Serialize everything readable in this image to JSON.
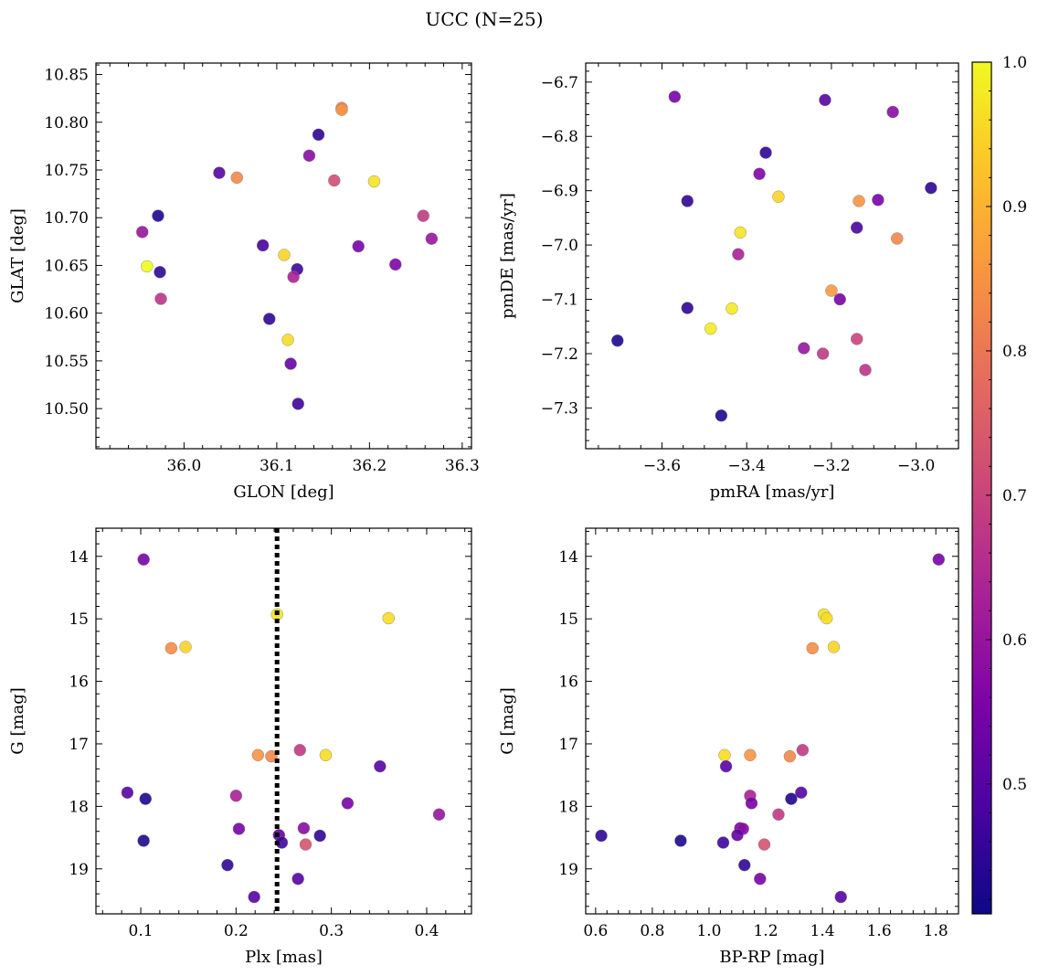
{
  "figure": {
    "title": "UCC (N=25)"
  },
  "colorbar": {
    "min": 0.41,
    "max": 1.0,
    "ticks": [
      0.5,
      0.6,
      0.7,
      0.8,
      0.9,
      1.0
    ],
    "tick_labels": [
      "0.5",
      "0.6",
      "0.7",
      "0.8",
      "0.9",
      "1.0"
    ],
    "colormap": "plasma"
  },
  "chart_data": [
    {
      "type": "scatter",
      "title": "",
      "xlabel": "GLON [deg]",
      "ylabel": "GLAT [deg]",
      "xlim": [
        35.905,
        36.31
      ],
      "ylim": [
        10.458,
        10.862
      ],
      "xticks": [
        36.0,
        36.1,
        36.2,
        36.3
      ],
      "xtick_labels": [
        "36.0",
        "36.1",
        "36.2",
        "36.3"
      ],
      "yticks": [
        10.5,
        10.55,
        10.6,
        10.65,
        10.7,
        10.75,
        10.8,
        10.85
      ],
      "ytick_labels": [
        "10.50",
        "10.55",
        "10.60",
        "10.65",
        "10.70",
        "10.75",
        "10.80",
        "10.85"
      ],
      "y_inverted": false,
      "points": [
        {
          "x": 36.17,
          "y": 10.815,
          "c": 0.82
        },
        {
          "x": 36.17,
          "y": 10.813,
          "c": 0.85
        },
        {
          "x": 36.145,
          "y": 10.787,
          "c": 0.45
        },
        {
          "x": 36.135,
          "y": 10.765,
          "c": 0.58
        },
        {
          "x": 36.038,
          "y": 10.747,
          "c": 0.5
        },
        {
          "x": 36.057,
          "y": 10.742,
          "c": 0.83
        },
        {
          "x": 36.162,
          "y": 10.739,
          "c": 0.72
        },
        {
          "x": 36.205,
          "y": 10.738,
          "c": 0.97
        },
        {
          "x": 35.972,
          "y": 10.702,
          "c": 0.43
        },
        {
          "x": 36.258,
          "y": 10.702,
          "c": 0.68
        },
        {
          "x": 35.955,
          "y": 10.685,
          "c": 0.6
        },
        {
          "x": 36.267,
          "y": 10.678,
          "c": 0.6
        },
        {
          "x": 36.085,
          "y": 10.671,
          "c": 0.48
        },
        {
          "x": 36.188,
          "y": 10.67,
          "c": 0.55
        },
        {
          "x": 36.108,
          "y": 10.661,
          "c": 0.95
        },
        {
          "x": 35.96,
          "y": 10.649,
          "c": 1.0
        },
        {
          "x": 36.228,
          "y": 10.651,
          "c": 0.56
        },
        {
          "x": 36.122,
          "y": 10.646,
          "c": 0.47
        },
        {
          "x": 35.974,
          "y": 10.643,
          "c": 0.45
        },
        {
          "x": 36.118,
          "y": 10.638,
          "c": 0.63
        },
        {
          "x": 35.975,
          "y": 10.615,
          "c": 0.67
        },
        {
          "x": 36.092,
          "y": 10.594,
          "c": 0.45
        },
        {
          "x": 36.112,
          "y": 10.572,
          "c": 0.96
        },
        {
          "x": 36.115,
          "y": 10.547,
          "c": 0.52
        },
        {
          "x": 36.123,
          "y": 10.505,
          "c": 0.47
        }
      ]
    },
    {
      "type": "scatter",
      "title": "",
      "xlabel": "pmRA [mas/yr]",
      "ylabel": "pmDE [mas/yr]",
      "xlim": [
        -3.78,
        -2.9
      ],
      "ylim": [
        -7.375,
        -6.665
      ],
      "xticks": [
        -3.6,
        -3.4,
        -3.2,
        -3.0
      ],
      "xtick_labels": [
        "−3.6",
        "−3.4",
        "−3.2",
        "−3.0"
      ],
      "yticks": [
        -7.3,
        -7.2,
        -7.1,
        -7.0,
        -6.9,
        -6.8,
        -6.7
      ],
      "ytick_labels": [
        "−7.3",
        "−7.2",
        "−7.1",
        "−7.0",
        "−6.9",
        "−6.8",
        "−6.7"
      ],
      "y_inverted": false,
      "points": [
        {
          "x": -3.57,
          "y": -6.727,
          "c": 0.55
        },
        {
          "x": -3.215,
          "y": -6.733,
          "c": 0.5
        },
        {
          "x": -3.055,
          "y": -6.755,
          "c": 0.58
        },
        {
          "x": -3.355,
          "y": -6.83,
          "c": 0.45
        },
        {
          "x": -3.37,
          "y": -6.869,
          "c": 0.56
        },
        {
          "x": -2.965,
          "y": -6.895,
          "c": 0.45
        },
        {
          "x": -3.325,
          "y": -6.911,
          "c": 0.95
        },
        {
          "x": -3.54,
          "y": -6.919,
          "c": 0.45
        },
        {
          "x": -3.135,
          "y": -6.919,
          "c": 0.85
        },
        {
          "x": -3.09,
          "y": -6.917,
          "c": 0.55
        },
        {
          "x": -3.14,
          "y": -6.968,
          "c": 0.48
        },
        {
          "x": -3.415,
          "y": -6.977,
          "c": 0.97
        },
        {
          "x": -3.045,
          "y": -6.988,
          "c": 0.83
        },
        {
          "x": -3.42,
          "y": -7.017,
          "c": 0.63
        },
        {
          "x": -3.2,
          "y": -7.084,
          "c": 0.86
        },
        {
          "x": -3.18,
          "y": -7.1,
          "c": 0.55
        },
        {
          "x": -3.54,
          "y": -7.116,
          "c": 0.45
        },
        {
          "x": -3.435,
          "y": -7.117,
          "c": 0.98
        },
        {
          "x": -3.485,
          "y": -7.154,
          "c": 0.98
        },
        {
          "x": -3.14,
          "y": -7.173,
          "c": 0.7
        },
        {
          "x": -3.705,
          "y": -7.176,
          "c": 0.43
        },
        {
          "x": -3.265,
          "y": -7.19,
          "c": 0.6
        },
        {
          "x": -3.22,
          "y": -7.2,
          "c": 0.68
        },
        {
          "x": -3.12,
          "y": -7.23,
          "c": 0.67
        },
        {
          "x": -3.46,
          "y": -7.314,
          "c": 0.43
        }
      ]
    },
    {
      "type": "scatter",
      "title": "",
      "xlabel": "Plx [mas]",
      "ylabel": "G [mag]",
      "xlim": [
        0.053,
        0.447
      ],
      "ylim": [
        13.55,
        19.72
      ],
      "xticks": [
        0.1,
        0.2,
        0.3,
        0.4
      ],
      "xtick_labels": [
        "0.1",
        "0.2",
        "0.3",
        "0.4"
      ],
      "yticks": [
        14,
        15,
        16,
        17,
        18,
        19
      ],
      "ytick_labels": [
        "14",
        "15",
        "16",
        "17",
        "18",
        "19"
      ],
      "y_inverted": true,
      "vline": {
        "x": 0.243,
        "style": "dotted"
      },
      "points": [
        {
          "x": 0.103,
          "y": 14.05,
          "c": 0.55
        },
        {
          "x": 0.243,
          "y": 14.93,
          "c": 0.97
        },
        {
          "x": 0.36,
          "y": 14.99,
          "c": 0.96
        },
        {
          "x": 0.132,
          "y": 15.47,
          "c": 0.84
        },
        {
          "x": 0.147,
          "y": 15.45,
          "c": 0.95
        },
        {
          "x": 0.267,
          "y": 17.1,
          "c": 0.68
        },
        {
          "x": 0.223,
          "y": 17.18,
          "c": 0.85
        },
        {
          "x": 0.237,
          "y": 17.2,
          "c": 0.83
        },
        {
          "x": 0.294,
          "y": 17.18,
          "c": 0.96
        },
        {
          "x": 0.351,
          "y": 17.36,
          "c": 0.5
        },
        {
          "x": 0.086,
          "y": 17.78,
          "c": 0.5
        },
        {
          "x": 0.2,
          "y": 17.83,
          "c": 0.63
        },
        {
          "x": 0.105,
          "y": 17.88,
          "c": 0.43
        },
        {
          "x": 0.317,
          "y": 17.95,
          "c": 0.55
        },
        {
          "x": 0.413,
          "y": 18.13,
          "c": 0.6
        },
        {
          "x": 0.203,
          "y": 18.36,
          "c": 0.55
        },
        {
          "x": 0.271,
          "y": 18.35,
          "c": 0.58
        },
        {
          "x": 0.245,
          "y": 18.46,
          "c": 0.52
        },
        {
          "x": 0.288,
          "y": 18.47,
          "c": 0.45
        },
        {
          "x": 0.103,
          "y": 18.55,
          "c": 0.43
        },
        {
          "x": 0.248,
          "y": 18.58,
          "c": 0.47
        },
        {
          "x": 0.273,
          "y": 18.61,
          "c": 0.73
        },
        {
          "x": 0.191,
          "y": 18.94,
          "c": 0.45
        },
        {
          "x": 0.265,
          "y": 19.16,
          "c": 0.5
        },
        {
          "x": 0.219,
          "y": 19.45,
          "c": 0.5
        }
      ]
    },
    {
      "type": "scatter",
      "title": "",
      "xlabel": "BP-RP [mag]",
      "ylabel": "G [mag]",
      "xlim": [
        0.565,
        1.88
      ],
      "ylim": [
        13.55,
        19.72
      ],
      "xticks": [
        0.6,
        0.8,
        1.0,
        1.2,
        1.4,
        1.6,
        1.8
      ],
      "xtick_labels": [
        "0.6",
        "0.8",
        "1.0",
        "1.2",
        "1.4",
        "1.6",
        "1.8"
      ],
      "yticks": [
        14,
        15,
        16,
        17,
        18,
        19
      ],
      "ytick_labels": [
        "14",
        "15",
        "16",
        "17",
        "18",
        "19"
      ],
      "y_inverted": true,
      "points": [
        {
          "x": 1.81,
          "y": 14.05,
          "c": 0.55
        },
        {
          "x": 1.405,
          "y": 14.93,
          "c": 0.97
        },
        {
          "x": 1.415,
          "y": 14.99,
          "c": 0.96
        },
        {
          "x": 1.365,
          "y": 15.47,
          "c": 0.84
        },
        {
          "x": 1.44,
          "y": 15.45,
          "c": 0.95
        },
        {
          "x": 1.33,
          "y": 17.1,
          "c": 0.68
        },
        {
          "x": 1.055,
          "y": 17.18,
          "c": 0.96
        },
        {
          "x": 1.145,
          "y": 17.18,
          "c": 0.85
        },
        {
          "x": 1.285,
          "y": 17.2,
          "c": 0.83
        },
        {
          "x": 1.06,
          "y": 17.36,
          "c": 0.5
        },
        {
          "x": 1.145,
          "y": 17.83,
          "c": 0.63
        },
        {
          "x": 1.325,
          "y": 17.78,
          "c": 0.5
        },
        {
          "x": 1.29,
          "y": 17.88,
          "c": 0.43
        },
        {
          "x": 1.15,
          "y": 17.95,
          "c": 0.55
        },
        {
          "x": 1.245,
          "y": 18.13,
          "c": 0.68
        },
        {
          "x": 1.11,
          "y": 18.35,
          "c": 0.55
        },
        {
          "x": 1.12,
          "y": 18.36,
          "c": 0.58
        },
        {
          "x": 1.1,
          "y": 18.46,
          "c": 0.52
        },
        {
          "x": 0.62,
          "y": 18.47,
          "c": 0.45
        },
        {
          "x": 0.9,
          "y": 18.55,
          "c": 0.43
        },
        {
          "x": 1.05,
          "y": 18.58,
          "c": 0.47
        },
        {
          "x": 1.195,
          "y": 18.61,
          "c": 0.73
        },
        {
          "x": 1.125,
          "y": 18.94,
          "c": 0.45
        },
        {
          "x": 1.18,
          "y": 19.16,
          "c": 0.55
        },
        {
          "x": 1.465,
          "y": 19.45,
          "c": 0.5
        }
      ]
    }
  ]
}
